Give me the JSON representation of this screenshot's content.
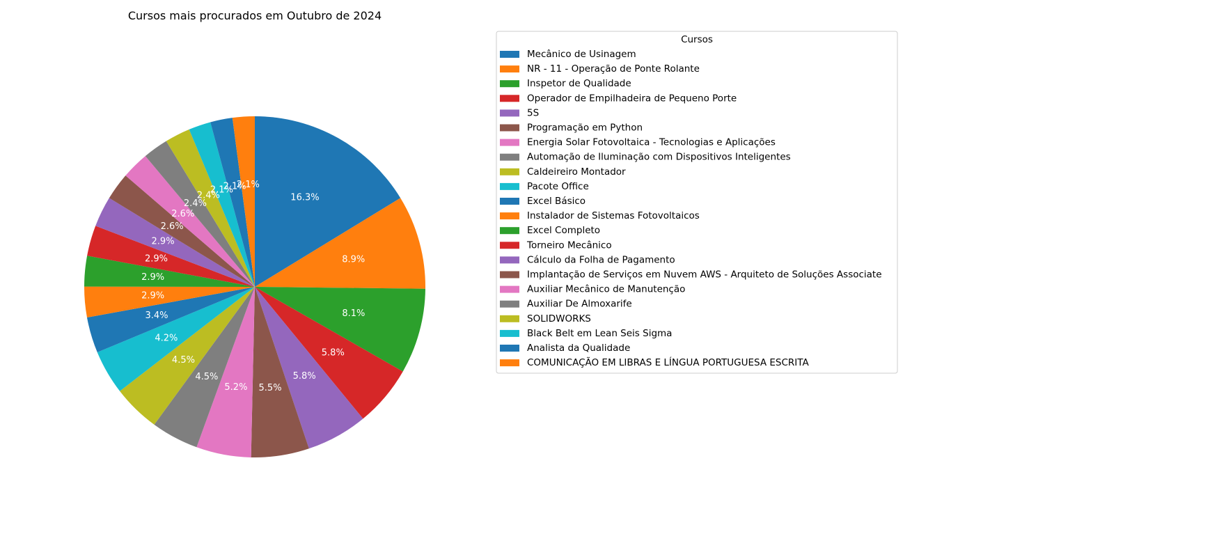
{
  "chart_data": {
    "type": "pie",
    "title": "Cursos mais procurados em Outubro de 2024",
    "legend_title": "Cursos",
    "legend_position": "right",
    "start_angle_deg": 90,
    "direction": "clockwise",
    "categories": [
      "Mecânico de Usinagem",
      "NR - 11 - Operação de Ponte Rolante",
      "Inspetor de Qualidade",
      "Operador de Empilhadeira de Pequeno Porte",
      "5S",
      "Programação em Python",
      "Energia Solar Fotovoltaica - Tecnologias e Aplicações",
      "Automação de Iluminação com Dispositivos Inteligentes",
      "Caldeireiro Montador",
      "Pacote Office",
      "Excel Básico",
      "Instalador de Sistemas Fotovoltaicos",
      "Excel Completo",
      "Torneiro Mecânico",
      "Cálculo da Folha de Pagamento",
      "Implantação de Serviços em Nuvem AWS - Arquiteto de Soluções Associate",
      "Auxiliar Mecânico de Manutenção",
      "Auxiliar De Almoxarife",
      "SOLIDWORKS",
      "Black Belt em Lean Seis Sigma",
      "Analista da Qualidade",
      "COMUNICAÇÃO EM LIBRAS E LÍNGUA PORTUGUESA ESCRITA"
    ],
    "values": [
      16.3,
      8.9,
      8.1,
      5.8,
      5.8,
      5.5,
      5.2,
      4.5,
      4.5,
      4.2,
      3.4,
      2.9,
      2.9,
      2.9,
      2.9,
      2.6,
      2.6,
      2.4,
      2.4,
      2.1,
      2.1,
      2.1
    ],
    "labels": [
      "16.3%",
      "8.9%",
      "8.1%",
      "5.8%",
      "5.8%",
      "5.5%",
      "5.2%",
      "4.5%",
      "4.5%",
      "4.2%",
      "3.4%",
      "2.9%",
      "2.9%",
      "2.9%",
      "2.9%",
      "2.6%",
      "2.6%",
      "2.4%",
      "2.4%",
      "2.1%",
      "2.1%",
      "2.1%"
    ],
    "colors": [
      "#1f77b4",
      "#ff7f0e",
      "#2ca02c",
      "#d62728",
      "#9467bd",
      "#8c564b",
      "#e377c2",
      "#7f7f7f",
      "#bcbd22",
      "#17becf",
      "#1f77b4",
      "#ff7f0e",
      "#2ca02c",
      "#d62728",
      "#9467bd",
      "#8c564b",
      "#e377c2",
      "#7f7f7f",
      "#bcbd22",
      "#17becf",
      "#1f77b4",
      "#ff7f0e"
    ]
  }
}
